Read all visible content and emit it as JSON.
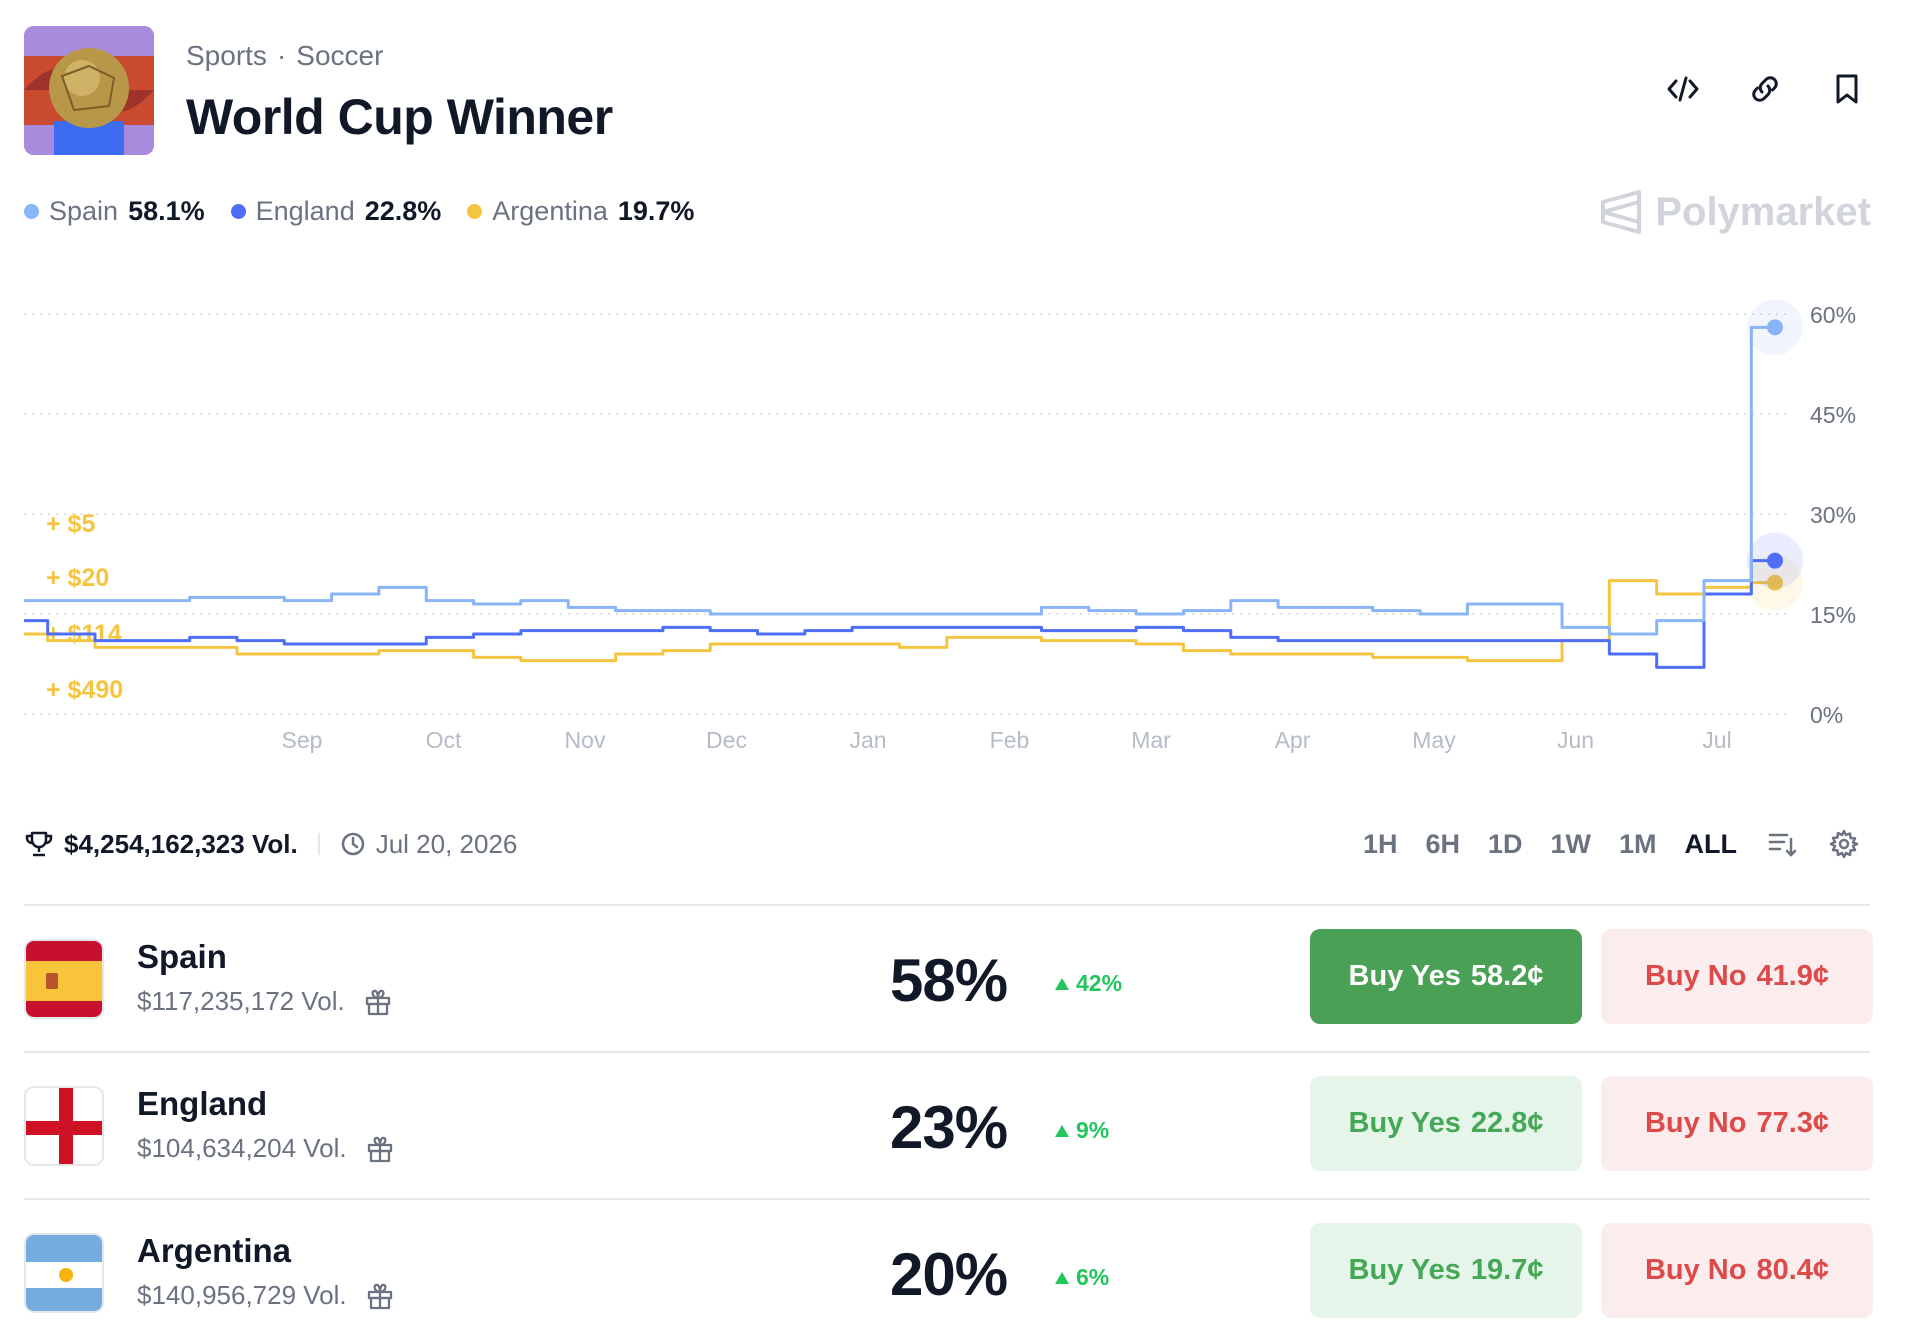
{
  "header": {
    "category": "Sports",
    "subcategory": "Soccer",
    "title": "World Cup Winner",
    "icons": [
      "embed-icon",
      "link-icon",
      "bookmark-icon"
    ]
  },
  "brand": {
    "name": "Polymarket"
  },
  "legend": [
    {
      "name": "Spain",
      "pct": "58.1%",
      "color": "#8ab4f8"
    },
    {
      "name": "England",
      "pct": "22.8%",
      "color": "#4f6ef7"
    },
    {
      "name": "Argentina",
      "pct": "19.7%",
      "color": "#f5c542"
    }
  ],
  "trade_labels": [
    "+ $5",
    "+ $20",
    "+ $114",
    "+ $490"
  ],
  "chart_data": {
    "type": "line",
    "x_ticks": [
      "Sep",
      "Oct",
      "Nov",
      "Dec",
      "Jan",
      "Feb",
      "Mar",
      "Apr",
      "May",
      "Jun",
      "Jul"
    ],
    "y_ticks": [
      "60%",
      "45%",
      "30%",
      "15%",
      "0%"
    ],
    "ylim": [
      0,
      60
    ],
    "grid": true,
    "series": [
      {
        "name": "Spain",
        "color": "#8ab4f8",
        "values": [
          17,
          17,
          17,
          17,
          17.5,
          17.5,
          17,
          18,
          19,
          17,
          16.5,
          17,
          16,
          15.5,
          15.5,
          15,
          15,
          15,
          15,
          15,
          15,
          15,
          16,
          15.5,
          15,
          15.5,
          17,
          16,
          16,
          15.5,
          15,
          16.5,
          16.5,
          13,
          12,
          14,
          20,
          58
        ]
      },
      {
        "name": "England",
        "color": "#4f6ef7",
        "values": [
          14,
          12,
          11,
          11,
          11.5,
          11,
          10.5,
          10.5,
          10.5,
          11.5,
          12,
          12.5,
          12.5,
          12.5,
          13,
          12.5,
          12,
          12.5,
          13,
          13,
          13,
          13,
          12.5,
          12.5,
          13,
          12.5,
          11.5,
          11,
          11,
          11,
          11,
          11,
          11,
          11,
          9,
          7,
          18,
          23
        ]
      },
      {
        "name": "Argentina",
        "color": "#f5c542",
        "values": [
          12,
          11,
          10,
          10,
          10,
          9,
          9,
          9,
          9.5,
          9.5,
          8.5,
          8,
          8,
          9,
          9.5,
          10.5,
          10.5,
          10.5,
          10.5,
          10,
          11.5,
          11.5,
          11,
          11,
          10.5,
          9.5,
          9,
          9,
          9,
          8.5,
          8.5,
          8,
          8,
          11,
          20,
          18,
          19,
          19.7
        ]
      }
    ]
  },
  "stats": {
    "volume": "$4,254,162,323 Vol.",
    "end_date": "Jul 20, 2026"
  },
  "ranges": [
    "1H",
    "6H",
    "1D",
    "1W",
    "1M",
    "ALL"
  ],
  "outcomes": [
    {
      "name": "Spain",
      "volume": "$117,235,172 Vol.",
      "pct": "58%",
      "change": "42%",
      "yes_label": "Buy Yes",
      "yes_price": "58.2¢",
      "no_label": "Buy No",
      "no_price": "41.9¢"
    },
    {
      "name": "England",
      "volume": "$104,634,204 Vol.",
      "pct": "23%",
      "change": "9%",
      "yes_label": "Buy Yes",
      "yes_price": "22.8¢",
      "no_label": "Buy No",
      "no_price": "77.3¢"
    },
    {
      "name": "Argentina",
      "volume": "$140,956,729 Vol.",
      "pct": "20%",
      "change": "6%",
      "yes_label": "Buy Yes",
      "yes_price": "19.7¢",
      "no_label": "Buy No",
      "no_price": "80.4¢"
    }
  ]
}
